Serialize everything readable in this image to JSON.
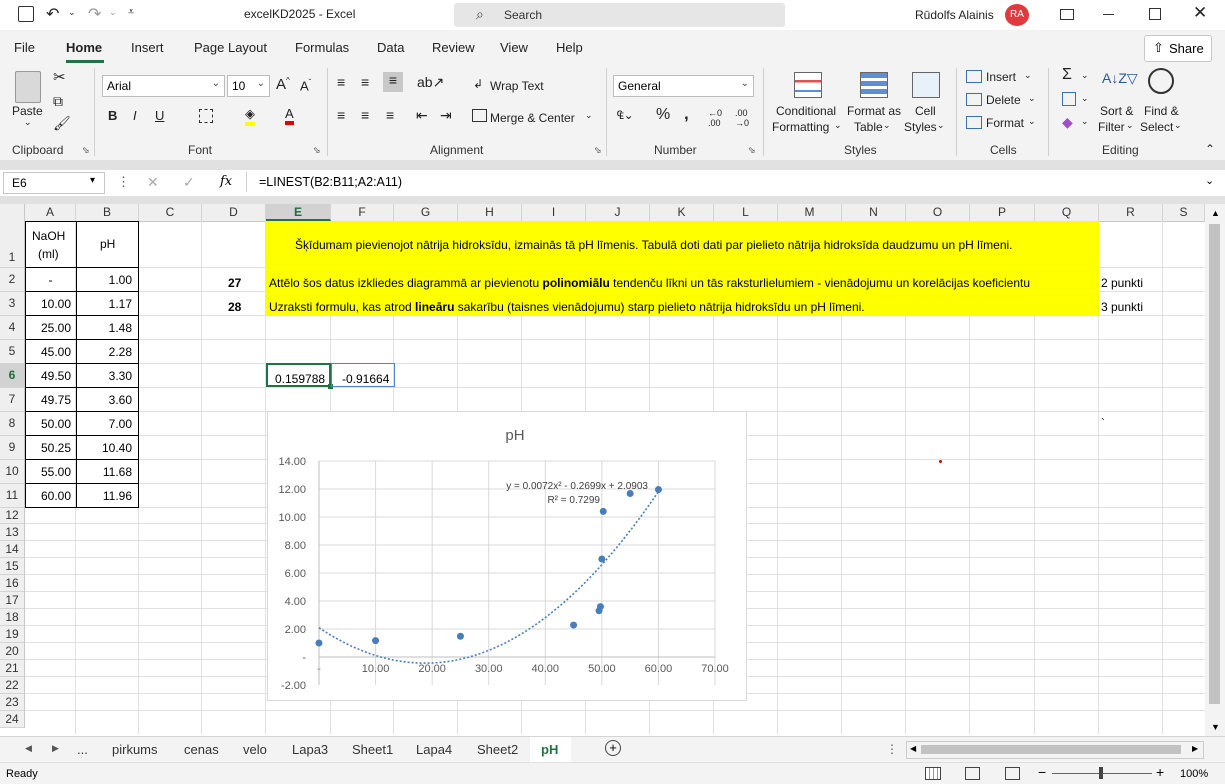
{
  "window": {
    "title": "excelKD2025  -  Excel",
    "search_placeholder": "Search",
    "user_name": "Rūdolfs Alainis",
    "user_initials": "RA"
  },
  "menu": [
    "File",
    "Home",
    "Insert",
    "Page Layout",
    "Formulas",
    "Data",
    "Review",
    "View",
    "Help"
  ],
  "share_label": "Share",
  "ribbon": {
    "clipboard": {
      "paste": "Paste",
      "group": "Clipboard"
    },
    "font": {
      "name": "Arial",
      "size": "10",
      "group": "Font"
    },
    "alignment": {
      "wrap": "Wrap Text",
      "merge": "Merge & Center",
      "group": "Alignment"
    },
    "number": {
      "format": "General",
      "group": "Number"
    },
    "styles": {
      "conditional": "Conditional",
      "conditional2": "Formatting",
      "format_as": "Format as",
      "format_as2": "Table",
      "cell_styles": "Cell",
      "cell_styles2": "Styles",
      "group": "Styles"
    },
    "cells": {
      "insert": "Insert",
      "delete": "Delete",
      "format": "Format",
      "group": "Cells"
    },
    "editing": {
      "sort": "Sort &",
      "sort2": "Filter",
      "find": "Find &",
      "find2": "Select",
      "group": "Editing"
    }
  },
  "formula_bar": {
    "name_box": "E6",
    "fx": "fx",
    "formula": "=LINEST(B2:B11;A2:A11)"
  },
  "columns": [
    "A",
    "B",
    "C",
    "D",
    "E",
    "F",
    "G",
    "H",
    "I",
    "J",
    "K",
    "L",
    "M",
    "N",
    "O",
    "P",
    "Q",
    "R",
    "S"
  ],
  "rows": [
    "1",
    "2",
    "3",
    "4",
    "5",
    "6",
    "7",
    "8",
    "9",
    "10",
    "11",
    "12",
    "13",
    "14",
    "15",
    "16",
    "17",
    "18",
    "19",
    "20",
    "21",
    "22",
    "23",
    "24"
  ],
  "table": {
    "header_a": [
      "NaOH",
      "(ml)"
    ],
    "header_b": "pH",
    "a_values": [
      "-",
      "10.00",
      "25.00",
      "45.00",
      "49.50",
      "49.75",
      "50.00",
      "50.25",
      "55.00",
      "60.00"
    ],
    "b_values": [
      "1.00",
      "1.17",
      "1.48",
      "2.28",
      "3.30",
      "3.60",
      "7.00",
      "10.40",
      "11.68",
      "11.96"
    ]
  },
  "task_text": {
    "e1": "Šķīdumam pievienojot nātrija hidroksīdu, izmainās tā pH līmenis. Tabulā doti dati par pielieto nātrija hidroksīda daudzumu un pH līmeni.",
    "d2": "27",
    "e2_pre": "Attēlo šos datus izkliedes diagrammā  ar pievienotu ",
    "e2_bold": "polinomiālu",
    "e2_post": " tendenču līkni un tās raksturlielumiem - vienādojumu un korelācijas koeficientu",
    "r2": "2 punkti",
    "d3": "28",
    "e3_pre": "Uzraksti formulu, kas atrod ",
    "e3_bold": "lineāru",
    "e3_post": " sakarību (taisnes vienādojumu) starp pielieto nātrija hidroksīdu un pH līmeni.",
    "r3": "3 punkti",
    "r8": "`"
  },
  "results": {
    "e6": "0.159788",
    "f6": "-0.91664"
  },
  "chart_data": {
    "type": "scatter",
    "title": "pH",
    "x": [
      0,
      10,
      25,
      45,
      49.5,
      49.75,
      50,
      50.25,
      55,
      60
    ],
    "y": [
      1.0,
      1.17,
      1.48,
      2.28,
      3.3,
      3.6,
      7.0,
      10.4,
      11.68,
      11.96
    ],
    "trendline": {
      "type": "polynomial",
      "order": 2,
      "coefficients": [
        0.0072,
        -0.2699,
        2.0903
      ]
    },
    "equation_label": "y = 0.0072x² - 0.2699x + 2.0903",
    "r2_label": "R² = 0.7299",
    "xlim": [
      0,
      70
    ],
    "ylim": [
      -2,
      14
    ],
    "x_ticks": [
      "-",
      "10.00",
      "20.00",
      "30.00",
      "40.00",
      "50.00",
      "60.00",
      "70.00"
    ],
    "y_ticks": [
      "-2.00",
      "-",
      "2.00",
      "4.00",
      "6.00",
      "8.00",
      "10.00",
      "12.00",
      "14.00"
    ],
    "grid": true,
    "point_color": "#4a7ebb"
  },
  "sheet_tabs": [
    "pirkums",
    "cenas",
    "velo",
    "Lapa3",
    "Sheet1",
    "Lapa4",
    "Sheet2",
    "pH"
  ],
  "active_tab": "pH",
  "tab_ellipsis": "...",
  "status": {
    "ready": "Ready",
    "zoom": "100%"
  },
  "colors": {
    "excel_green": "#217346",
    "highlight": "#ffff00",
    "accent_red": "#e03a3e"
  }
}
